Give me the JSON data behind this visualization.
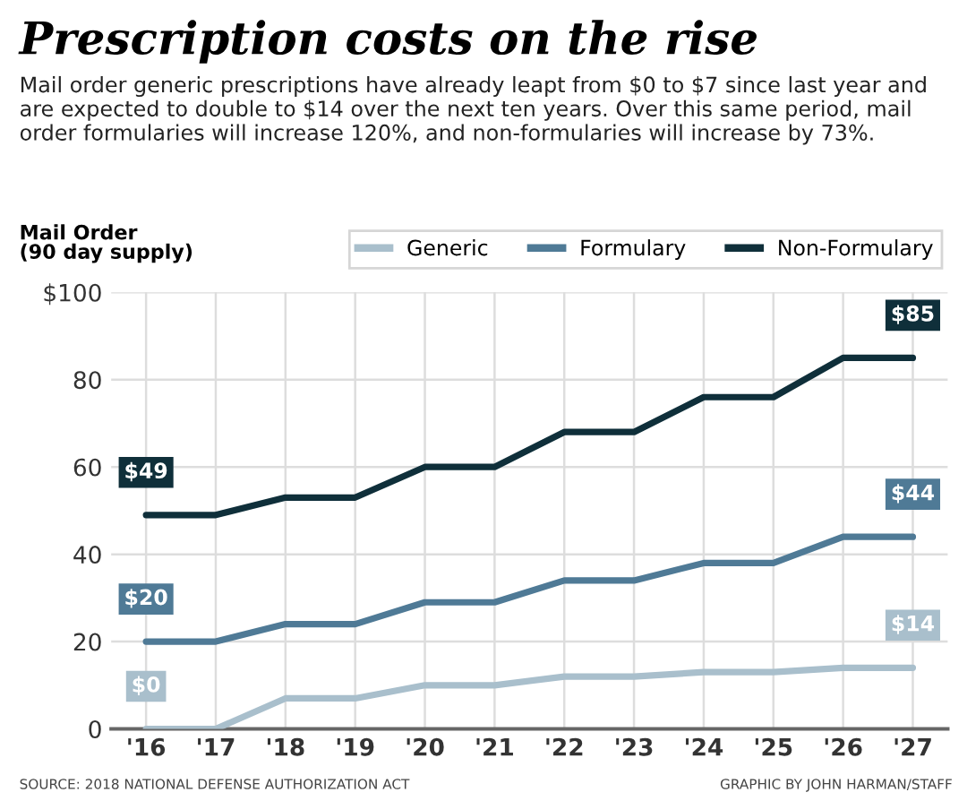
{
  "chart_data": {
    "type": "line",
    "title": "Prescription costs on the rise",
    "subtitle": "Mail order generic prescriptions have already leapt from $0 to $7 since last year and are expected to double to $14 over the next ten years. Over this same period, mail order formularies will increase 120%, and non-formularies will increase by 73%.",
    "ylabel": "Mail Order\n(90 day supply)",
    "categories": [
      "'16",
      "'17",
      "'18",
      "'19",
      "'20",
      "'21",
      "'22",
      "'23",
      "'24",
      "'25",
      "'26",
      "'27"
    ],
    "series": [
      {
        "name": "Generic",
        "color": "#a9bfcc",
        "values": [
          0,
          0,
          7,
          7,
          10,
          10,
          12,
          12,
          13,
          13,
          14,
          14
        ],
        "value_labels": [
          "$0",
          null,
          null,
          null,
          null,
          null,
          null,
          null,
          null,
          null,
          null,
          "$14"
        ]
      },
      {
        "name": "Formulary",
        "color": "#4f7a96",
        "values": [
          20,
          20,
          24,
          24,
          29,
          29,
          34,
          34,
          38,
          38,
          44,
          44
        ],
        "value_labels": [
          "$20",
          null,
          null,
          null,
          null,
          null,
          null,
          null,
          null,
          null,
          null,
          "$44"
        ]
      },
      {
        "name": "Non-Formulary",
        "color": "#0f2f3a",
        "values": [
          49,
          49,
          53,
          53,
          60,
          60,
          68,
          68,
          76,
          76,
          85,
          85
        ],
        "value_labels": [
          "$49",
          null,
          null,
          null,
          null,
          null,
          null,
          null,
          null,
          null,
          null,
          "$85"
        ]
      }
    ],
    "ylim": [
      0,
      100
    ],
    "yticks": [
      0,
      20,
      40,
      60,
      80,
      {
        "value": 100,
        "label": "$100"
      }
    ],
    "grid": true,
    "legend": "top right",
    "annotations": [
      "SOURCE: 2018 NATIONAL DEFENSE AUTHORIZATION ACT",
      "GRAPHIC BY JOHN HARMAN/STAFF"
    ]
  }
}
